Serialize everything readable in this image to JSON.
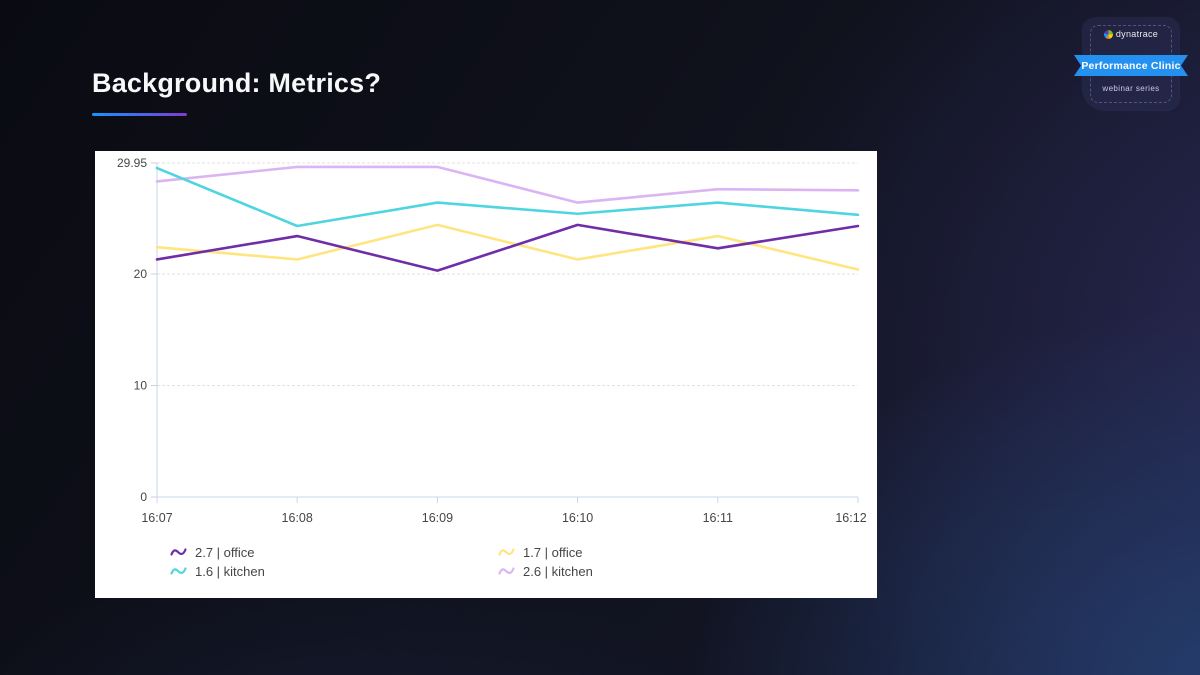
{
  "slide": {
    "title": "Background: Metrics?"
  },
  "badge": {
    "brand": "dynatrace",
    "ribbon_label": "Performance Clinic",
    "subtitle": "webinar series"
  },
  "colors": {
    "accent_blue": "#1496ff",
    "accent_purple": "#7e3bd0",
    "ribbon_blue": "#2490ef",
    "axis_line": "#c9d4ee",
    "gridline": "#e1e1e1",
    "chart_text": "#454646"
  },
  "chart_data": {
    "type": "line",
    "x": [
      "16:07",
      "16:08",
      "16:09",
      "16:10",
      "16:11",
      "16:12"
    ],
    "series": [
      {
        "name": "2.7 | office",
        "color": "#6f2da8",
        "values": [
          21.3,
          23.4,
          20.3,
          24.4,
          22.3,
          24.3
        ]
      },
      {
        "name": "1.6 | kitchen",
        "color": "#4fd5e0",
        "values": [
          29.5,
          24.3,
          26.4,
          25.4,
          26.4,
          25.3
        ]
      },
      {
        "name": "1.7 | office",
        "color": "#ffe57f",
        "values": [
          22.4,
          21.3,
          24.4,
          21.3,
          23.4,
          20.4
        ]
      },
      {
        "name": "2.6 | kitchen",
        "color": "#dbb5f2",
        "values": [
          28.3,
          29.6,
          29.6,
          26.4,
          27.6,
          27.5
        ]
      }
    ],
    "yticks": [
      0,
      10,
      20,
      29.95
    ],
    "ylim": [
      0,
      29.95
    ],
    "grid": "horizontal-dashed",
    "legend_position": "bottom"
  }
}
